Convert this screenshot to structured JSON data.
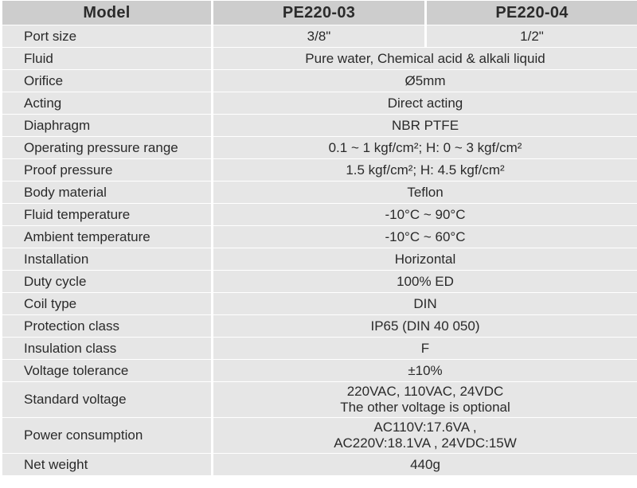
{
  "header": {
    "col0": "Model",
    "col1": "PE220-03",
    "col2": "PE220-04"
  },
  "rows": [
    {
      "label": "Port size",
      "v1": "3/8\"",
      "v2": "1/2\""
    },
    {
      "label": "Fluid",
      "value": "Pure water, Chemical acid & alkali liquid"
    },
    {
      "label": "Orifice",
      "value": "Ø5mm"
    },
    {
      "label": "Acting",
      "value": "Direct acting"
    },
    {
      "label": "Diaphragm",
      "value": "NBR PTFE"
    },
    {
      "label": "Operating pressure range",
      "value": "0.1 ~ 1 kgf/cm²; H: 0 ~ 3 kgf/cm²"
    },
    {
      "label": "Proof pressure",
      "value": "1.5 kgf/cm²; H: 4.5 kgf/cm²"
    },
    {
      "label": "Body material",
      "value": "Teflon"
    },
    {
      "label": "Fluid temperature",
      "value": "-10°C ~ 90°C"
    },
    {
      "label": "Ambient temperature",
      "value": "-10°C ~ 60°C"
    },
    {
      "label": "Installation",
      "value": "Horizontal"
    },
    {
      "label": "Duty cycle",
      "value": "100% ED"
    },
    {
      "label": "Coil type",
      "value": "DIN"
    },
    {
      "label": "Protection class",
      "value": "IP65 (DIN 40 050)"
    },
    {
      "label": "Insulation class",
      "value": "F"
    },
    {
      "label": "Voltage tolerance",
      "value": "±10%"
    },
    {
      "label": "Standard voltage",
      "line1": "220VAC, 110VAC, 24VDC",
      "line2": "The other voltage is optional"
    },
    {
      "label": "Power consumption",
      "line1": "AC110V:17.6VA ,",
      "line2": "AC220V:18.1VA , 24VDC:15W"
    },
    {
      "label": "Net weight",
      "value": "440g"
    }
  ]
}
